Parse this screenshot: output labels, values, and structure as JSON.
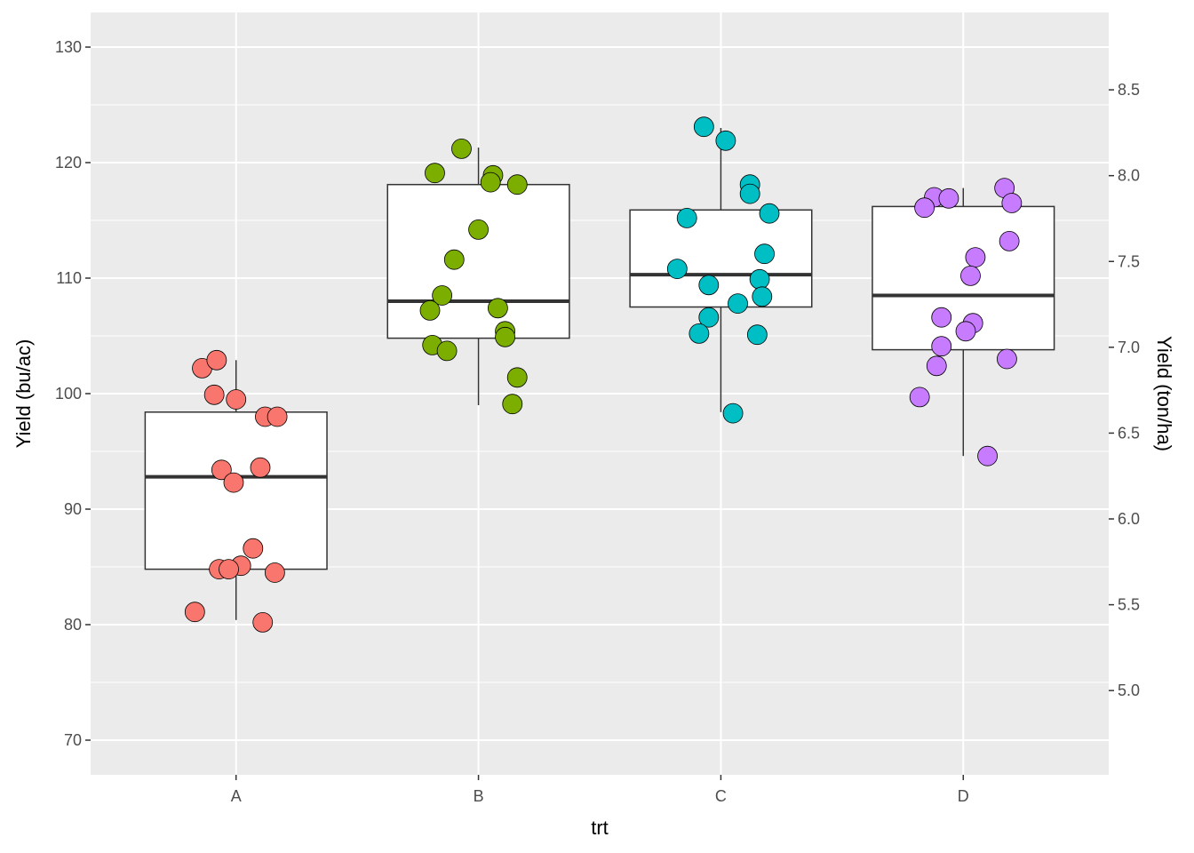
{
  "chart_data": {
    "type": "boxplot",
    "xlabel": "trt",
    "ylabel": "Yield (bu/ac)",
    "y2label": "Yield (ton/ha)",
    "ylim": [
      67,
      133
    ],
    "y_ticks": [
      70,
      80,
      90,
      100,
      110,
      120,
      130
    ],
    "y2_ticks": [
      "5.0",
      "5.5",
      "6.0",
      "6.5",
      "7.0",
      "7.5",
      "8.0",
      "8.5"
    ],
    "y2_per_y1": 0.0673,
    "grid": true,
    "background": "#EBEBEB",
    "categories": [
      "A",
      "B",
      "C",
      "D"
    ],
    "colors": [
      "#F8766D",
      "#7CAE00",
      "#00BFC4",
      "#C77CFF"
    ],
    "boxes": [
      {
        "category": "A",
        "whisker_low": 80.4,
        "q1": 84.8,
        "median": 92.8,
        "q3": 98.4,
        "whisker_high": 102.9
      },
      {
        "category": "B",
        "whisker_low": 99.0,
        "q1": 104.8,
        "median": 108.0,
        "q3": 118.1,
        "whisker_high": 121.3
      },
      {
        "category": "C",
        "whisker_low": 98.4,
        "q1": 107.5,
        "median": 110.3,
        "q3": 115.9,
        "whisker_high": 123.0
      },
      {
        "category": "D",
        "whisker_low": 94.6,
        "q1": 103.8,
        "median": 108.5,
        "q3": 116.2,
        "whisker_high": 117.8
      }
    ],
    "points": {
      "A": [
        102.2,
        102.9,
        99.9,
        99.5,
        98.0,
        98.0,
        93.4,
        93.6,
        92.3,
        86.6,
        85.1,
        84.8,
        84.8,
        84.5,
        81.1,
        80.2
      ],
      "B": [
        121.2,
        119.1,
        118.9,
        118.3,
        118.1,
        114.2,
        111.6,
        108.5,
        107.4,
        107.2,
        105.4,
        104.9,
        104.2,
        103.7,
        101.4,
        99.1
      ],
      "C": [
        123.1,
        121.9,
        118.1,
        117.3,
        115.6,
        115.2,
        112.1,
        110.8,
        109.9,
        109.4,
        108.4,
        107.8,
        106.6,
        105.2,
        105.1,
        98.3
      ],
      "D": [
        117.8,
        117.0,
        116.9,
        116.5,
        116.1,
        113.2,
        111.8,
        110.2,
        106.6,
        106.1,
        105.4,
        104.1,
        103.0,
        102.4,
        99.7,
        94.6
      ]
    },
    "point_jitter": {
      "A": [
        -0.14,
        -0.08,
        -0.09,
        0.0,
        0.12,
        0.17,
        -0.06,
        0.1,
        -0.01,
        0.07,
        0.02,
        -0.07,
        -0.03,
        0.16,
        -0.17,
        0.11
      ],
      "B": [
        -0.07,
        -0.18,
        0.06,
        0.05,
        0.16,
        0.0,
        -0.1,
        -0.15,
        0.08,
        -0.2,
        0.11,
        0.11,
        -0.19,
        -0.13,
        0.16,
        0.14
      ],
      "C": [
        -0.07,
        0.02,
        0.12,
        0.12,
        0.2,
        -0.14,
        0.18,
        -0.18,
        0.16,
        -0.05,
        0.17,
        0.07,
        -0.05,
        -0.09,
        0.15,
        0.05
      ],
      "D": [
        0.17,
        -0.12,
        -0.06,
        0.2,
        -0.16,
        0.19,
        0.05,
        0.03,
        -0.09,
        0.04,
        0.01,
        -0.09,
        0.18,
        -0.11,
        -0.18,
        0.1
      ]
    }
  }
}
